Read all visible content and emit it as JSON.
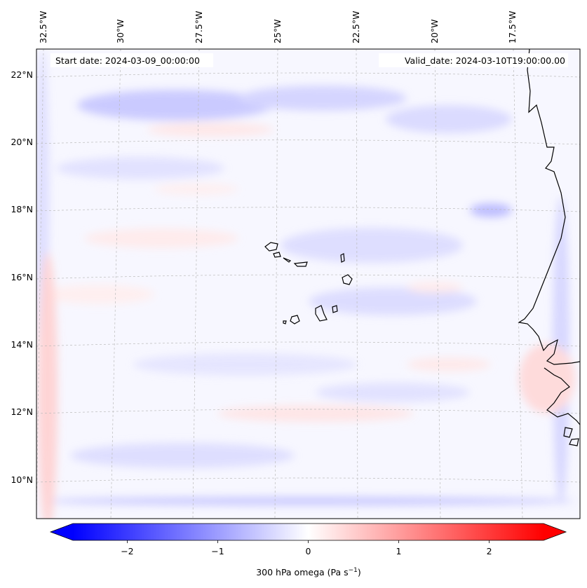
{
  "map": {
    "start_date": "Start date: 2024-03-09_00:00:00",
    "valid_date": "Valid_date: 2024-03-10T19:00:00.00",
    "lon_labels": [
      "32.5°W",
      "30°W",
      "27.5°W",
      "25°W",
      "22.5°W",
      "20°W",
      "17.5°W"
    ],
    "lat_labels": [
      "22°N",
      "20°N",
      "18°N",
      "16°N",
      "14°N",
      "12°N",
      "10°N"
    ],
    "field": "300 hPa omega",
    "coastline_color": "#000000",
    "gridline_color": "#bbbbbb"
  },
  "colorbar": {
    "label": "300 hPa omega (Pa s",
    "label_sup": "−1",
    "label_close": ")",
    "ticks": [
      "−2",
      "−1",
      "0",
      "1",
      "2"
    ],
    "tick_values": [
      -2,
      -1,
      0,
      1,
      2
    ],
    "range": [
      -2.6,
      2.6
    ],
    "cmap": "bwr",
    "colors": {
      "low": "#0000ff",
      "mid": "#ffffff",
      "high": "#ff0000"
    }
  }
}
